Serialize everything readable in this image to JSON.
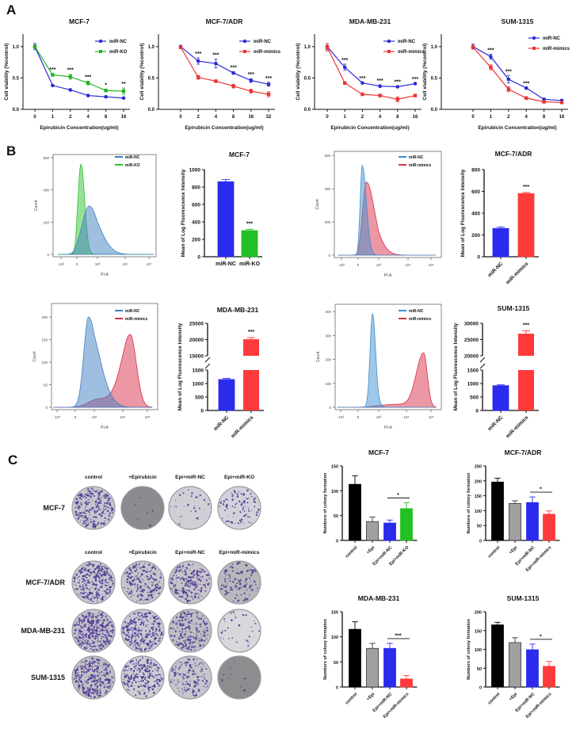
{
  "figure": {
    "panel_labels": [
      "A",
      "B",
      "C"
    ]
  },
  "colony_assay": {
    "header_row1": [
      "control",
      "+Epirubicin",
      "Epi+miR-NC",
      "Epi+miR-KO"
    ],
    "header_row2": [
      "control",
      "+Epirubicin",
      "Epi+miR-NC",
      "Epi+miR-mimics"
    ],
    "row_labels": [
      "MCF-7",
      "MCF-7/ADR",
      "MDA-MB-231",
      "SUM-1315"
    ]
  },
  "chart_data": [
    {
      "type": "line",
      "title": "MCF-7",
      "xlabel": "Epirubicin Concentration(ug/ml)",
      "ylabel": "Cell viability (%control)",
      "categories": [
        "0",
        "1",
        "2",
        "4",
        "8",
        "16"
      ],
      "ylim": [
        0,
        1.2
      ],
      "yticks": [
        "0.0",
        "0.5",
        "1.0"
      ],
      "legend": "top-right",
      "series": [
        {
          "name": "miR-NC",
          "color": "#2b2bd9",
          "marker": "circle",
          "values": [
            1.0,
            0.38,
            0.31,
            0.22,
            0.2,
            0.18
          ],
          "errors": [
            0.05,
            0.01,
            0.01,
            0.01,
            0.01,
            0.01
          ]
        },
        {
          "name": "miR-KO",
          "color": "#22b422",
          "marker": "square",
          "values": [
            1.0,
            0.55,
            0.52,
            0.42,
            0.3,
            0.29
          ],
          "errors": [
            0.03,
            0.02,
            0.04,
            0.03,
            0.02,
            0.05
          ]
        }
      ],
      "significance": [
        "",
        "***",
        "***",
        "***",
        "*",
        "**"
      ]
    },
    {
      "type": "line",
      "title": "MCF-7/ADR",
      "xlabel": "Epirubicin Concentration(ug/ml)",
      "ylabel": "Cell viability (%control)",
      "categories": [
        "0",
        "2",
        "4",
        "8",
        "16",
        "32"
      ],
      "ylim": [
        0,
        1.2
      ],
      "yticks": [
        "0.0",
        "0.5",
        "1.0"
      ],
      "legend": "top-right",
      "series": [
        {
          "name": "miR-NC",
          "color": "#2b2bd9",
          "marker": "circle",
          "values": [
            1.0,
            0.77,
            0.73,
            0.58,
            0.46,
            0.4
          ],
          "errors": [
            0.02,
            0.05,
            0.07,
            0.02,
            0.03,
            0.03
          ]
        },
        {
          "name": "miR-mimics",
          "color": "#ee3333",
          "marker": "square",
          "values": [
            0.99,
            0.51,
            0.45,
            0.37,
            0.29,
            0.24
          ],
          "errors": [
            0.02,
            0.03,
            0.01,
            0.03,
            0.03,
            0.04
          ]
        }
      ],
      "significance": [
        "",
        "***",
        "***",
        "***",
        "***",
        "***"
      ]
    },
    {
      "type": "line",
      "title": "MDA-MB-231",
      "xlabel": "Epirubicin Concentration(ug/ml)",
      "ylabel": "Cell viability (%control)",
      "categories": [
        "0",
        "1",
        "2",
        "4",
        "8",
        "16"
      ],
      "ylim": [
        0,
        1.2
      ],
      "yticks": [
        "0.0",
        "0.5",
        "1.0"
      ],
      "legend": "top-right",
      "series": [
        {
          "name": "miR-NC",
          "color": "#2b2bd9",
          "marker": "circle",
          "values": [
            1.0,
            0.67,
            0.42,
            0.37,
            0.36,
            0.41
          ],
          "errors": [
            0.05,
            0.05,
            0.01,
            0.02,
            0.01,
            0.01
          ]
        },
        {
          "name": "miR-mimics",
          "color": "#ee3333",
          "marker": "square",
          "values": [
            0.99,
            0.42,
            0.24,
            0.22,
            0.16,
            0.22
          ],
          "errors": [
            0.06,
            0.02,
            0.01,
            0.01,
            0.04,
            0.01
          ]
        }
      ],
      "significance": [
        "",
        "***",
        "***",
        "***",
        "***",
        "***"
      ]
    },
    {
      "type": "line",
      "title": "SUM-1315",
      "xlabel": "Epirubicin Concentration(ug/ml)",
      "ylabel": "Cell viability (%control)",
      "categories": [
        "0",
        "1",
        "2",
        "4",
        "8",
        "16"
      ],
      "ylim": [
        0,
        1.2
      ],
      "yticks": [
        "0.0",
        "0.5",
        "1.0"
      ],
      "legend": "top-right",
      "series": [
        {
          "name": "miR-NC",
          "color": "#2b2bd9",
          "marker": "circle",
          "values": [
            1.0,
            0.84,
            0.48,
            0.34,
            0.16,
            0.14
          ],
          "errors": [
            0.04,
            0.04,
            0.06,
            0.01,
            0.02,
            0.02
          ]
        },
        {
          "name": "miR-mimics",
          "color": "#ee3333",
          "marker": "square",
          "values": [
            0.99,
            0.67,
            0.32,
            0.18,
            0.12,
            0.11
          ],
          "errors": [
            0.03,
            0.04,
            0.04,
            0.01,
            0.01,
            0.01
          ]
        }
      ],
      "significance": [
        "",
        "***",
        "***",
        "***",
        "",
        ""
      ]
    },
    {
      "type": "area",
      "xlabel": "PI-A",
      "ylabel": "Count",
      "xticks": [
        "-10³",
        "0",
        "10³",
        "10⁴",
        "10⁵"
      ],
      "ylim": [
        0,
        620
      ],
      "yticks": [
        "0",
        "200",
        "400",
        "600"
      ],
      "legend": "top-right",
      "series": [
        {
          "name": "miR-NC",
          "color": "#3f7fc4",
          "peak_pi_a": 600,
          "peak_count": 300
        },
        {
          "name": "miR-KO",
          "color": "#2fc42f",
          "peak_pi_a": 200,
          "peak_count": 560
        }
      ]
    },
    {
      "type": "area",
      "xlabel": "PI-A",
      "ylabel": "Count",
      "xticks": [
        "-10³",
        "0",
        "10³",
        "10⁴",
        "10⁵"
      ],
      "ylim": [
        0,
        625
      ],
      "yticks": [
        "0",
        "200",
        "400",
        "600"
      ],
      "legend": "top-right",
      "series": [
        {
          "name": "miR-NC",
          "color": "#3f8fd0",
          "peak_pi_a": 200,
          "peak_count": 540
        },
        {
          "name": "miR-mimics",
          "color": "#d9304a",
          "peak_pi_a": 400,
          "peak_count": 440
        }
      ]
    },
    {
      "type": "area",
      "xlabel": "PI-A",
      "ylabel": "Count",
      "xticks": [
        "-10³",
        "0",
        "10³",
        "10⁴",
        "10⁵"
      ],
      "ylim": [
        0,
        230
      ],
      "yticks": [
        "0",
        "50",
        "100",
        "150",
        "200"
      ],
      "legend": "top-right",
      "series": [
        {
          "name": "miR-NC",
          "color": "#3f7fc4",
          "peak_pi_a": 700,
          "peak_count": 200
        },
        {
          "name": "miR-mimics",
          "color": "#d9304a",
          "peak_pi_a": 20000,
          "peak_count": 160
        }
      ]
    },
    {
      "type": "area",
      "xlabel": "PI-A",
      "ylabel": "Count",
      "xticks": [
        "-10³",
        "0",
        "10³",
        "10⁴",
        "10⁵"
      ],
      "ylim": [
        0,
        430
      ],
      "yticks": [
        "0",
        "100",
        "200",
        "300",
        "400"
      ],
      "legend": "top-right",
      "series": [
        {
          "name": "miR-NC",
          "color": "#3f8fd0",
          "peak_pi_a": 700,
          "peak_count": 390
        },
        {
          "name": "miR-mimics",
          "color": "#d9304a",
          "peak_pi_a": 50000,
          "peak_count": 225
        }
      ]
    },
    {
      "type": "bar",
      "title": "MCF-7",
      "ylabel": "Mean of Log Fluorescence Intensity",
      "categories": [
        "miR-NC",
        "miR-KO"
      ],
      "values": [
        860,
        300
      ],
      "errors": [
        25,
        15
      ],
      "colors": [
        "#2b2bee",
        "#22c022"
      ],
      "ylim": [
        0,
        1000
      ],
      "yticks": [
        "0",
        "200",
        "400",
        "600",
        "800",
        "1000"
      ],
      "significance": [
        "",
        "***"
      ]
    },
    {
      "type": "bar",
      "title": "MCF-7/ADR",
      "ylabel": "Mean of Log Fluorescence Intensity",
      "categories": [
        "miR-NC",
        "miR-mimics"
      ],
      "values": [
        260,
        580
      ],
      "errors": [
        12,
        10
      ],
      "colors": [
        "#2b2bee",
        "#ff3a3a"
      ],
      "ylim": [
        0,
        800
      ],
      "yticks": [
        "0",
        "200",
        "400",
        "600",
        "800"
      ],
      "significance": [
        "",
        "***"
      ]
    },
    {
      "type": "bar",
      "title": "MDA-MB-231",
      "ylabel": "Mean of Log Fluorescence Intensity",
      "categories": [
        "miR-NC",
        "miR-mimics"
      ],
      "values": [
        1150,
        20100
      ],
      "errors": [
        40,
        500
      ],
      "colors": [
        "#2b2bee",
        "#ff3a3a"
      ],
      "axis_break": {
        "lower": [
          0,
          1500
        ],
        "upper": [
          15000,
          25000
        ]
      },
      "yticks": [
        "0",
        "500",
        "1000",
        "1500",
        "15000",
        "20000",
        "25000"
      ],
      "significance": [
        "",
        "***"
      ]
    },
    {
      "type": "bar",
      "title": "SUM-1315",
      "ylabel": "Mean of Log Fluorescence Intensity",
      "categories": [
        "miR-NC",
        "miR-mimics"
      ],
      "values": [
        920,
        26800
      ],
      "errors": [
        30,
        900
      ],
      "colors": [
        "#2b2bee",
        "#ff3a3a"
      ],
      "axis_break": {
        "lower": [
          0,
          1500
        ],
        "upper": [
          20000,
          30000
        ]
      },
      "yticks": [
        "0",
        "500",
        "1000",
        "1500",
        "20000",
        "25000",
        "30000"
      ],
      "significance": [
        "",
        "***"
      ]
    },
    {
      "type": "bar",
      "title": "MCF-7",
      "ylabel": "Numbers of colony formation",
      "categories": [
        "control",
        "+Epi",
        "Epi+miR-NC",
        "Epi+miR-KO"
      ],
      "values": [
        113,
        38,
        35,
        64
      ],
      "errors": [
        17,
        9,
        6,
        12
      ],
      "colors": [
        "#000000",
        "#a0a0a0",
        "#2b2bee",
        "#22c022"
      ],
      "ylim": [
        0,
        150
      ],
      "yticks": [
        "0",
        "50",
        "100",
        "150"
      ],
      "comparison": {
        "between": [
          2,
          3
        ],
        "label": "*"
      }
    },
    {
      "type": "bar",
      "title": "MCF-7/ADR",
      "ylabel": "Numbers of colony formation",
      "categories": [
        "control",
        "+Epi",
        "Epi+miR-NC",
        "Epi+miR-mimics"
      ],
      "values": [
        196,
        124,
        127,
        88
      ],
      "errors": [
        13,
        9,
        19,
        11
      ],
      "colors": [
        "#000000",
        "#a0a0a0",
        "#2b2bee",
        "#ff3a3a"
      ],
      "ylim": [
        0,
        250
      ],
      "yticks": [
        "0",
        "50",
        "100",
        "150",
        "200",
        "250"
      ],
      "comparison": {
        "between": [
          2,
          3
        ],
        "label": "*"
      }
    },
    {
      "type": "bar",
      "title": "MDA-MB-231",
      "ylabel": "Numbers of colony formation",
      "categories": [
        "control",
        "+Epi",
        "Epi+miR-NC",
        "Epi+miR-mimics"
      ],
      "values": [
        115,
        77,
        77,
        16
      ],
      "errors": [
        15,
        10,
        10,
        7
      ],
      "colors": [
        "#000000",
        "#a0a0a0",
        "#2b2bee",
        "#ff3a3a"
      ],
      "ylim": [
        0,
        150
      ],
      "yticks": [
        "0",
        "50",
        "100",
        "150"
      ],
      "comparison": {
        "between": [
          2,
          3
        ],
        "label": "***"
      }
    },
    {
      "type": "bar",
      "title": "SUM-1315",
      "ylabel": "Numbers of colony formation",
      "categories": [
        "control",
        "+Epi",
        "Epi+miR-NC",
        "Epi+miR-mimics"
      ],
      "values": [
        165,
        118,
        99,
        55
      ],
      "errors": [
        7,
        13,
        15,
        13
      ],
      "colors": [
        "#000000",
        "#a0a0a0",
        "#2b2bee",
        "#ff3a3a"
      ],
      "ylim": [
        0,
        200
      ],
      "yticks": [
        "0",
        "50",
        "100",
        "150",
        "200"
      ],
      "comparison": {
        "between": [
          2,
          3
        ],
        "label": "*"
      }
    }
  ]
}
